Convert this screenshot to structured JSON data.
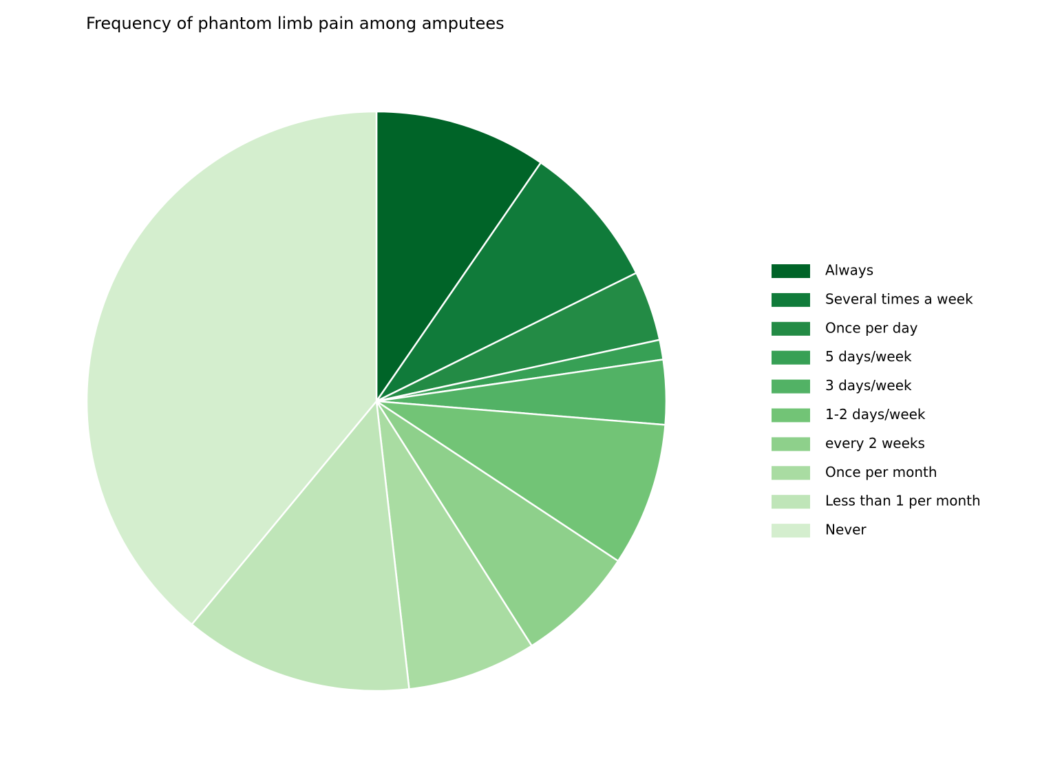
{
  "chart_data": {
    "type": "pie",
    "title": "Frequency of phantom limb pain among amputees",
    "categories": [
      "Always",
      "Several times a week",
      "Once per day",
      "5 days/week",
      "3 days/week",
      "1-2 days/week",
      "every 2 weeks",
      "Once per month",
      "Less than 1 per month",
      "Never"
    ],
    "values": [
      9.6,
      8.1,
      3.9,
      1.1,
      3.6,
      8.0,
      6.7,
      7.2,
      12.8,
      39.0
    ],
    "colors": [
      "#006428",
      "#107b3a",
      "#238b45",
      "#37a055",
      "#52b265",
      "#72c476",
      "#8ed08b",
      "#a9dca2",
      "#bfe5b8",
      "#d4eece"
    ],
    "start_angle": 90,
    "direction": "clockwise",
    "legend": "right"
  }
}
